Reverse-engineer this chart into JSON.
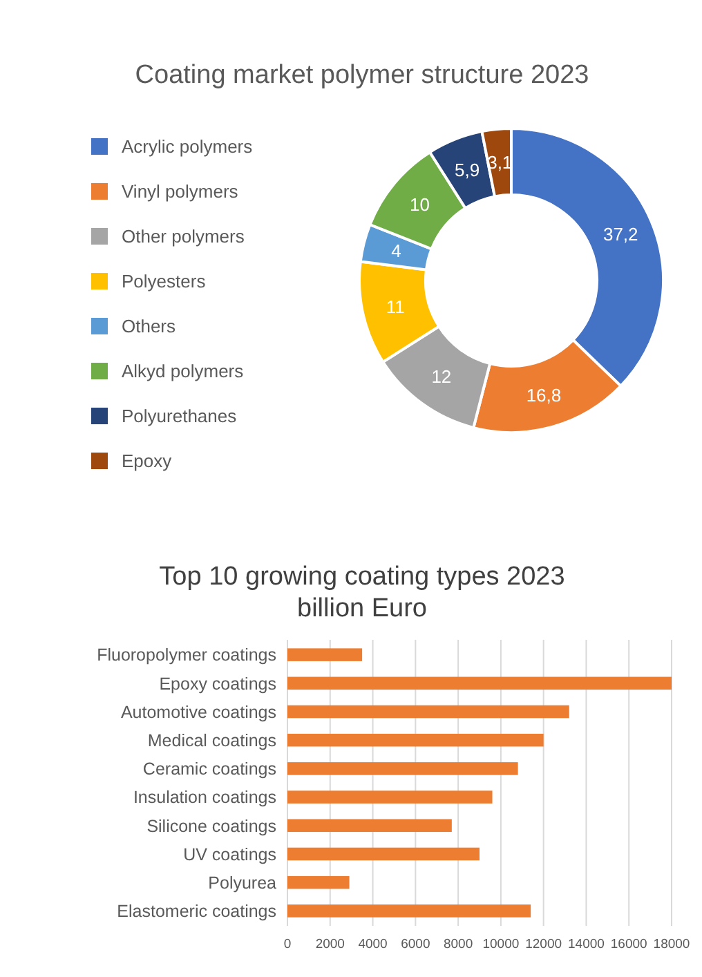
{
  "chart_data": [
    {
      "type": "donut",
      "title": "Coating market polymer structure 2023",
      "categories": [
        "Acrylic polymers",
        "Vinyl polymers",
        "Other polymers",
        "Polyesters",
        "Others",
        "Alkyd polymers",
        "Polyurethanes",
        "Epoxy"
      ],
      "values": [
        37.2,
        16.8,
        12,
        11,
        4,
        10,
        5.9,
        3.1
      ],
      "colors": [
        "#4472c4",
        "#ed7d31",
        "#a5a5a5",
        "#ffc000",
        "#5b9bd5",
        "#70ad47",
        "#264478",
        "#9e480e"
      ],
      "value_labels": [
        "37,2",
        "16,8",
        "12",
        "11",
        "4",
        "10",
        "5,9",
        "3,1"
      ],
      "legend": "left"
    },
    {
      "type": "bar",
      "orientation": "horizontal",
      "title": "Top 10 growing coating types 2023",
      "subtitle": "billion Euro",
      "categories": [
        "Fluoropolymer coatings",
        "Epoxy coatings",
        "Automotive coatings",
        "Medical coatings",
        "Ceramic coatings",
        "Insulation coatings",
        "Silicone coatings",
        "UV coatings",
        "Polyurea",
        "Elastomeric coatings"
      ],
      "values": [
        3500,
        18000,
        13200,
        12000,
        10800,
        9600,
        7700,
        9000,
        2900,
        11400
      ],
      "color": "#ed7d31",
      "xlim": [
        0,
        18000
      ],
      "xticks": [
        0,
        2000,
        4000,
        6000,
        8000,
        10000,
        12000,
        14000,
        16000,
        18000
      ],
      "grid": "x"
    }
  ]
}
